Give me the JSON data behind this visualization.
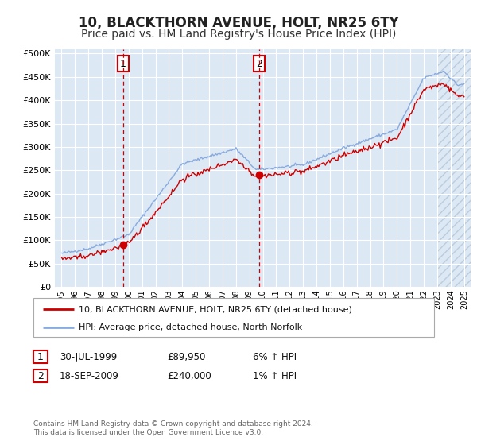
{
  "title": "10, BLACKTHORN AVENUE, HOLT, NR25 6TY",
  "subtitle": "Price paid vs. HM Land Registry's House Price Index (HPI)",
  "title_fontsize": 12,
  "subtitle_fontsize": 10,
  "ylabel_ticks": [
    "£0",
    "£50K",
    "£100K",
    "£150K",
    "£200K",
    "£250K",
    "£300K",
    "£350K",
    "£400K",
    "£450K",
    "£500K"
  ],
  "ytick_values": [
    0,
    50000,
    100000,
    150000,
    200000,
    250000,
    300000,
    350000,
    400000,
    450000,
    500000
  ],
  "ylim": [
    0,
    510000
  ],
  "xlim_start": 1994.5,
  "xlim_end": 2025.5,
  "background_color": "#dde8f5",
  "grid_color": "#ffffff",
  "line_color_property": "#cc0000",
  "line_color_hpi": "#88aadd",
  "sale1_x": 1999.58,
  "sale1_y": 89950,
  "sale2_x": 2009.72,
  "sale2_y": 240000,
  "legend_property_label": "10, BLACKTHORN AVENUE, HOLT, NR25 6TY (detached house)",
  "legend_hpi_label": "HPI: Average price, detached house, North Norfolk",
  "table_row1": [
    "1",
    "30-JUL-1999",
    "£89,950",
    "6% ↑ HPI"
  ],
  "table_row2": [
    "2",
    "18-SEP-2009",
    "£240,000",
    "1% ↑ HPI"
  ],
  "footnote": "Contains HM Land Registry data © Crown copyright and database right 2024.\nThis data is licensed under the Open Government Licence v3.0.",
  "xtick_years": [
    1995,
    1996,
    1997,
    1998,
    1999,
    2000,
    2001,
    2002,
    2003,
    2004,
    2005,
    2006,
    2007,
    2008,
    2009,
    2010,
    2011,
    2012,
    2013,
    2014,
    2015,
    2016,
    2017,
    2018,
    2019,
    2020,
    2021,
    2022,
    2023,
    2024,
    2025
  ]
}
